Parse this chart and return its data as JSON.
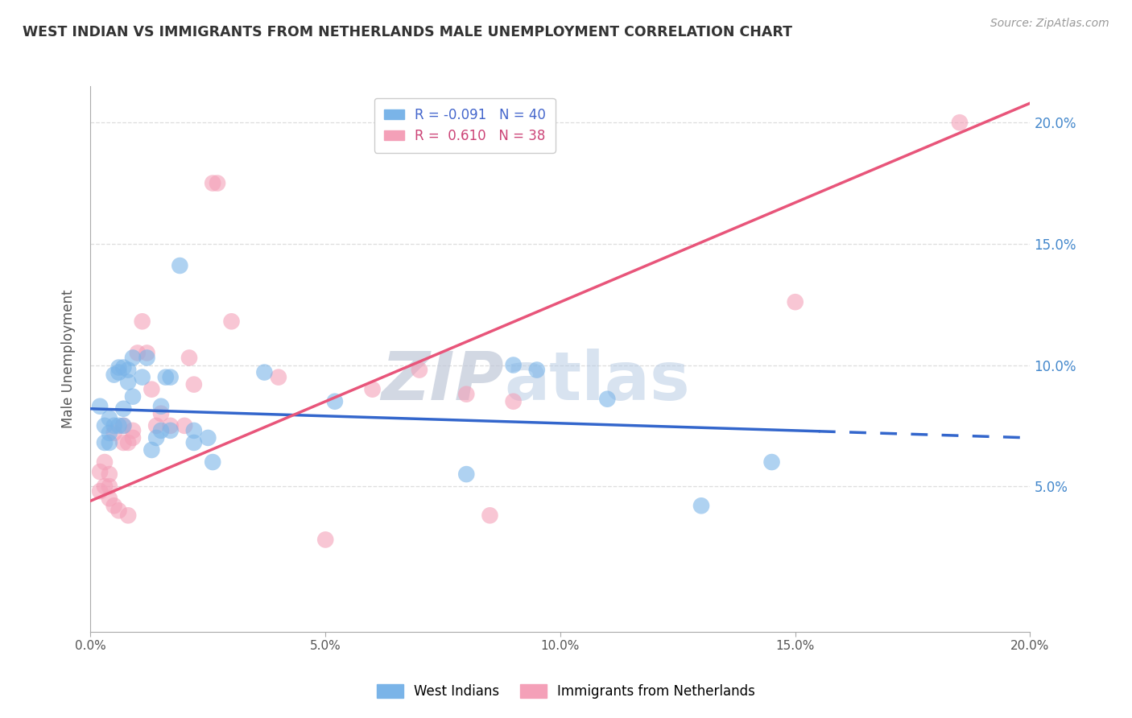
{
  "title": "WEST INDIAN VS IMMIGRANTS FROM NETHERLANDS MALE UNEMPLOYMENT CORRELATION CHART",
  "source": "Source: ZipAtlas.com",
  "ylabel": "Male Unemployment",
  "xlim": [
    0.0,
    20.0
  ],
  "ylim": [
    -1.0,
    21.5
  ],
  "right_ytick_labels": [
    "5.0%",
    "10.0%",
    "15.0%",
    "20.0%"
  ],
  "watermark_zip": "ZIP",
  "watermark_atlas": "atlas",
  "blue_color": "#7ab4e8",
  "pink_color": "#f4a0b8",
  "blue_line_color": "#3366cc",
  "pink_line_color": "#e8557a",
  "blue_scatter": [
    [
      0.2,
      8.3
    ],
    [
      0.3,
      7.5
    ],
    [
      0.3,
      6.8
    ],
    [
      0.4,
      6.8
    ],
    [
      0.4,
      7.8
    ],
    [
      0.4,
      7.2
    ],
    [
      0.5,
      9.6
    ],
    [
      0.5,
      7.5
    ],
    [
      0.6,
      7.5
    ],
    [
      0.6,
      9.7
    ],
    [
      0.6,
      9.9
    ],
    [
      0.7,
      7.5
    ],
    [
      0.7,
      8.2
    ],
    [
      0.7,
      9.9
    ],
    [
      0.8,
      9.3
    ],
    [
      0.8,
      9.8
    ],
    [
      0.9,
      10.3
    ],
    [
      0.9,
      8.7
    ],
    [
      1.1,
      9.5
    ],
    [
      1.2,
      10.3
    ],
    [
      1.3,
      6.5
    ],
    [
      1.4,
      7.0
    ],
    [
      1.5,
      7.3
    ],
    [
      1.5,
      8.3
    ],
    [
      1.6,
      9.5
    ],
    [
      1.7,
      9.5
    ],
    [
      1.7,
      7.3
    ],
    [
      1.9,
      14.1
    ],
    [
      2.2,
      7.3
    ],
    [
      2.2,
      6.8
    ],
    [
      2.5,
      7.0
    ],
    [
      2.6,
      6.0
    ],
    [
      3.7,
      9.7
    ],
    [
      5.2,
      8.5
    ],
    [
      8.0,
      5.5
    ],
    [
      9.0,
      10.0
    ],
    [
      9.5,
      9.8
    ],
    [
      11.0,
      8.6
    ],
    [
      13.0,
      4.2
    ],
    [
      14.5,
      6.0
    ]
  ],
  "pink_scatter": [
    [
      0.2,
      5.6
    ],
    [
      0.2,
      4.8
    ],
    [
      0.3,
      6.0
    ],
    [
      0.3,
      5.0
    ],
    [
      0.4,
      5.5
    ],
    [
      0.4,
      5.0
    ],
    [
      0.4,
      4.5
    ],
    [
      0.5,
      7.2
    ],
    [
      0.5,
      4.2
    ],
    [
      0.6,
      4.0
    ],
    [
      0.7,
      7.5
    ],
    [
      0.7,
      6.8
    ],
    [
      0.8,
      6.8
    ],
    [
      0.8,
      3.8
    ],
    [
      0.9,
      7.0
    ],
    [
      0.9,
      7.3
    ],
    [
      1.0,
      10.5
    ],
    [
      1.1,
      11.8
    ],
    [
      1.2,
      10.5
    ],
    [
      1.3,
      9.0
    ],
    [
      1.4,
      7.5
    ],
    [
      1.5,
      8.0
    ],
    [
      1.7,
      7.5
    ],
    [
      2.0,
      7.5
    ],
    [
      2.1,
      10.3
    ],
    [
      2.2,
      9.2
    ],
    [
      2.6,
      17.5
    ],
    [
      2.7,
      17.5
    ],
    [
      3.0,
      11.8
    ],
    [
      4.0,
      9.5
    ],
    [
      5.0,
      2.8
    ],
    [
      6.0,
      9.0
    ],
    [
      7.0,
      9.8
    ],
    [
      8.0,
      8.8
    ],
    [
      8.5,
      3.8
    ],
    [
      9.0,
      8.5
    ],
    [
      15.0,
      12.6
    ],
    [
      18.5,
      20.0
    ]
  ],
  "blue_line": {
    "x0": 0.0,
    "x1": 20.0,
    "y_intercept": 8.2,
    "slope": -0.06
  },
  "pink_line": {
    "x0": 0.0,
    "x1": 20.0,
    "y_intercept": 4.4,
    "slope": 0.82
  },
  "blue_line_dashed_start": 15.5,
  "grid_color": "#dddddd",
  "background_color": "#ffffff",
  "legend_r_blue": "R = -0.091",
  "legend_n_blue": "N = 40",
  "legend_r_pink": "R =  0.610",
  "legend_n_pink": "N = 38",
  "bottom_legend_label_blue": "West Indians",
  "bottom_legend_label_pink": "Immigrants from Netherlands"
}
